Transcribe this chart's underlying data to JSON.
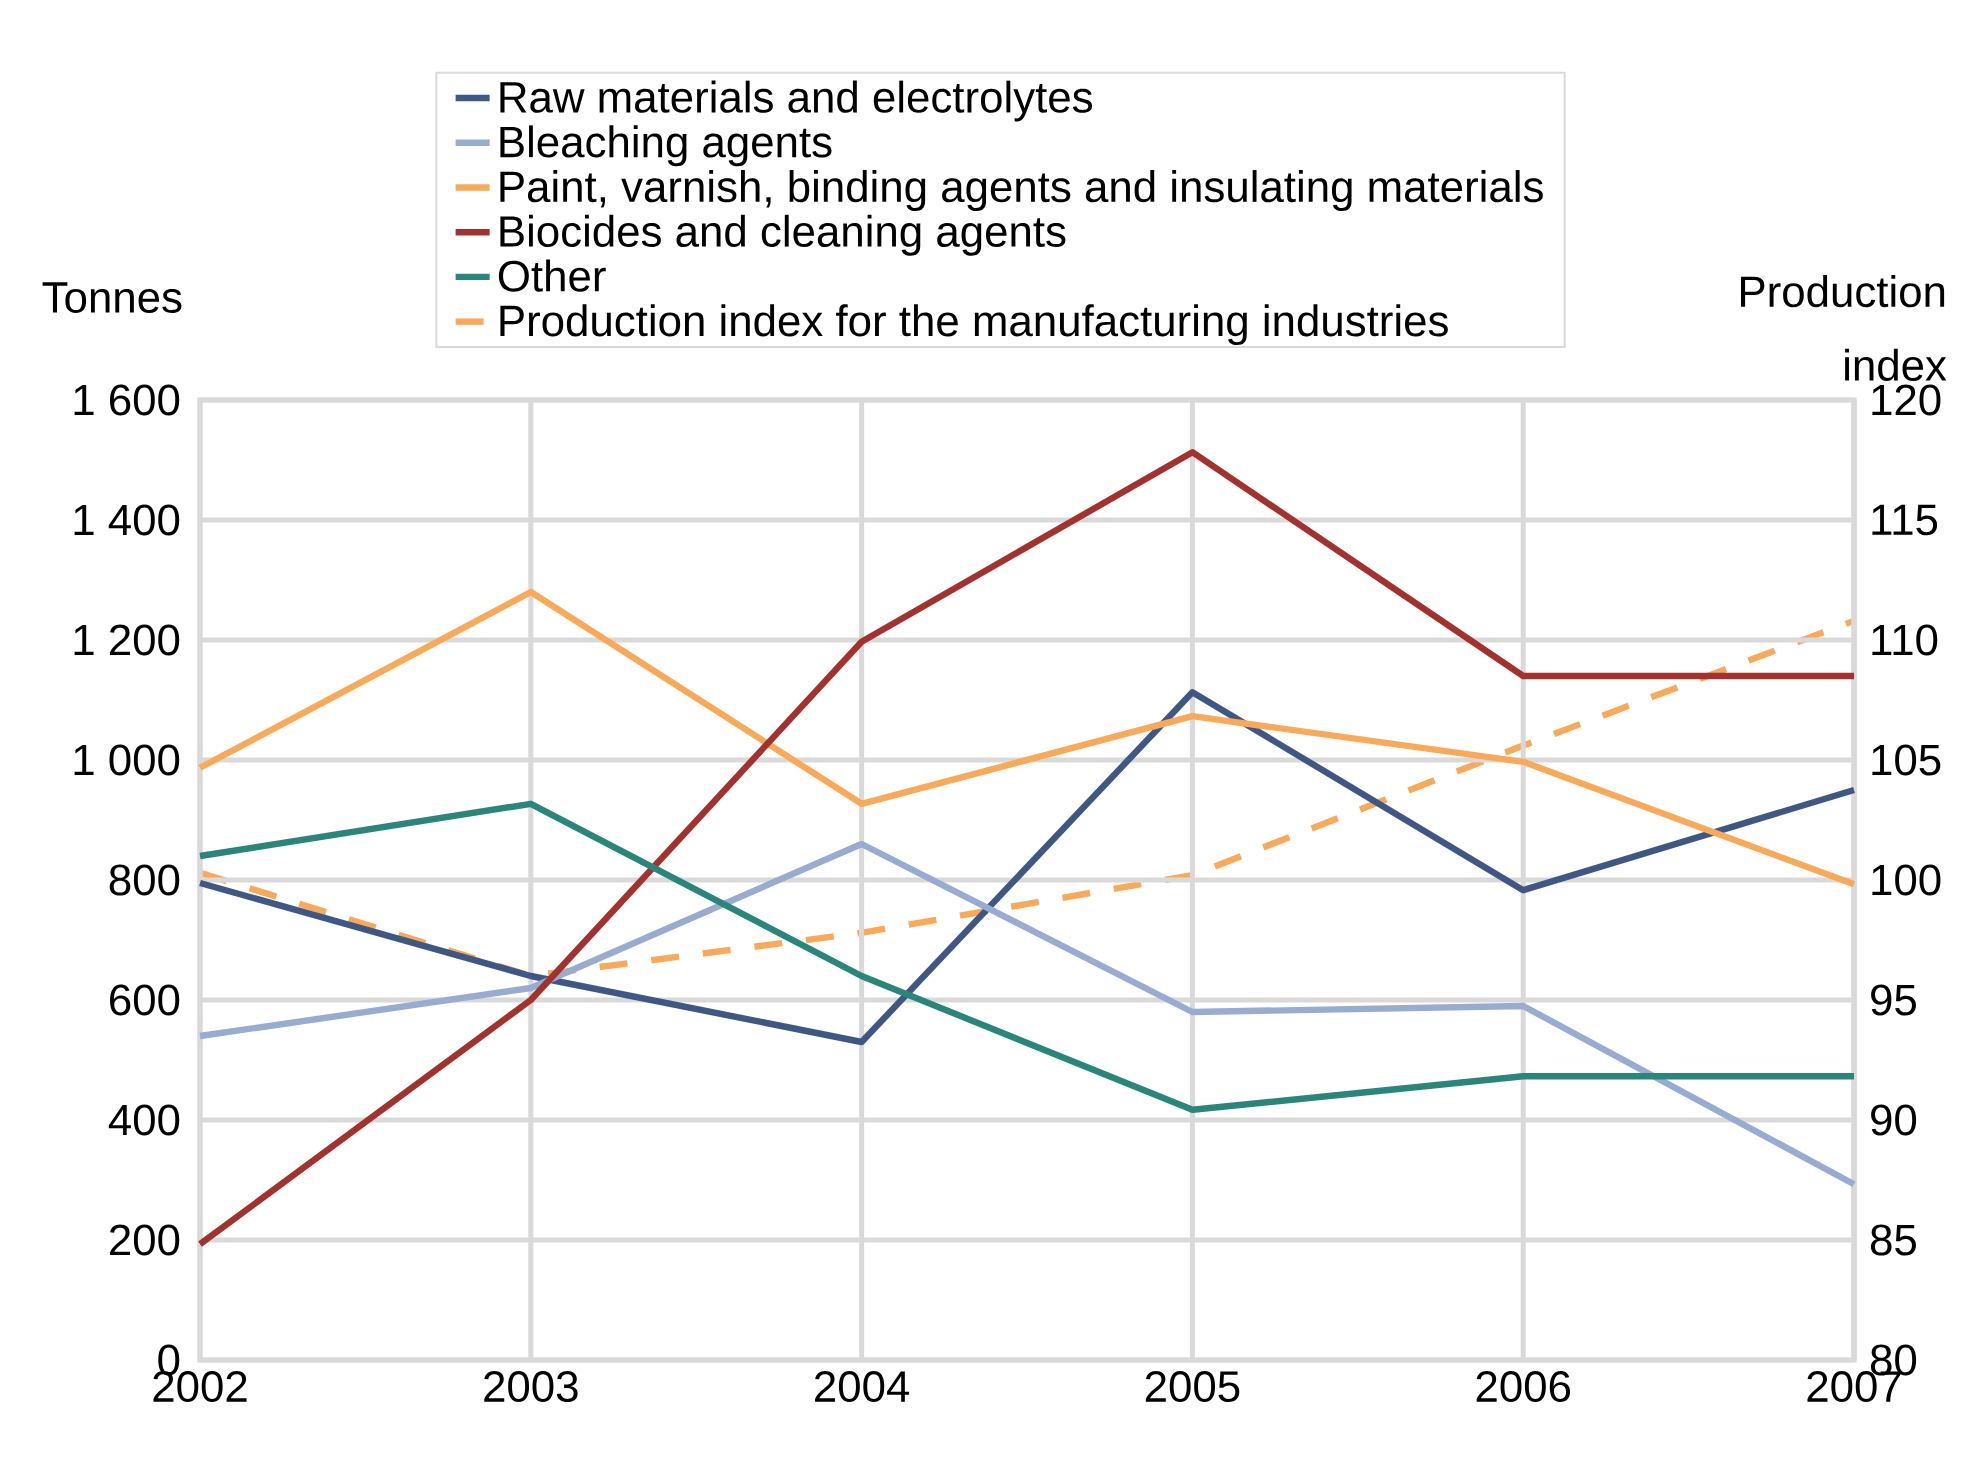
{
  "chart_data": {
    "type": "line",
    "ylabel": "Tonnes",
    "y2label": "Production index",
    "x": [
      2002,
      2003,
      2004,
      2005,
      2006,
      2007
    ],
    "xlim": [
      2002,
      2007
    ],
    "xticks": [
      2002,
      2003,
      2004,
      2005,
      2006,
      2007
    ],
    "ylim": [
      0,
      1600
    ],
    "yticks": [
      0,
      200,
      400,
      600,
      800,
      {
        "value": 1000,
        "label": "1 000"
      },
      {
        "value": 1200,
        "label": "1 200"
      },
      {
        "value": 1400,
        "label": "1 400"
      },
      {
        "value": 1600,
        "label": "1 600"
      }
    ],
    "y2lim": [
      80,
      120
    ],
    "y2ticks": [
      80,
      85,
      90,
      95,
      100,
      105,
      110,
      115,
      120
    ],
    "grid": true,
    "legend": "top",
    "marker": "none",
    "series": [
      {
        "name": "Raw  materials and electrolytes",
        "color": "#3f5785",
        "values": [
          795,
          640,
          530,
          1113,
          783,
          950
        ]
      },
      {
        "name": "Bleaching agents",
        "color": "#97acd0",
        "values": [
          540,
          620,
          860,
          580,
          590,
          293
        ]
      },
      {
        "name": "Paint, varnish, binding agents and insulating materials",
        "color": "#f8a95a",
        "values": [
          987,
          1280,
          927,
          1073,
          997,
          793
        ]
      },
      {
        "name": "Biocides and cleaning agents",
        "color": "#a3322f",
        "values": [
          193,
          600,
          1197,
          1513,
          1140,
          1140
        ]
      },
      {
        "name": "Other",
        "color": "#2a857b",
        "values": [
          840,
          927,
          640,
          417,
          473,
          473
        ]
      },
      {
        "name": "Production index for the manufacturing industries",
        "color": "#f8a95a",
        "axis": "y2",
        "line_style": "dashed",
        "values": [
          100.3,
          96,
          97.8,
          100.2,
          105.6,
          110.8
        ]
      }
    ]
  }
}
